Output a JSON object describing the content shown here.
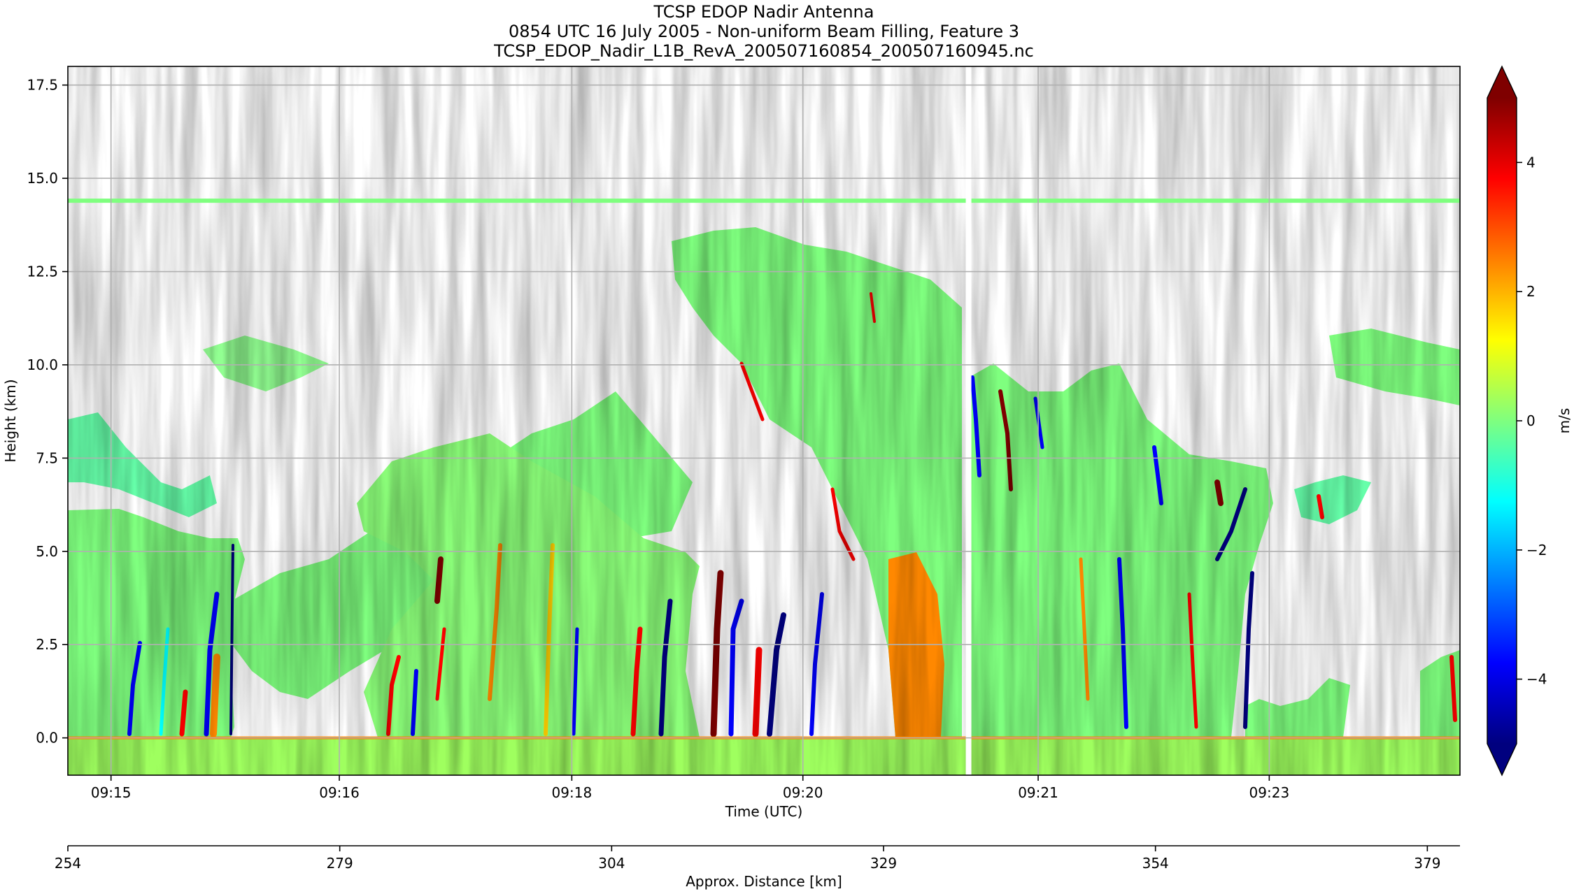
{
  "chart_data": {
    "type": "heatmap",
    "title": [
      "TCSP EDOP Nadir Antenna",
      "0854 UTC 16 July 2005 - Non-uniform Beam Filling, Feature 3",
      "TCSP_EDOP_Nadir_L1B_RevA_200507160854_200507160945.nc"
    ],
    "xlabel": "Time (UTC)",
    "ylabel": "Height (km)",
    "x2label": "Approx. Distance [km]",
    "colorbar_label": "m/s",
    "x_ticks": [
      "09:15",
      "09:16",
      "09:18",
      "09:20",
      "09:21",
      "09:23"
    ],
    "x_tick_fracs": [
      0.031,
      0.195,
      0.362,
      0.528,
      0.697,
      0.863
    ],
    "y_ticks": [
      "0.0",
      "2.5",
      "5.0",
      "7.5",
      "10.0",
      "12.5",
      "15.0",
      "17.5"
    ],
    "y_tick_values": [
      0.0,
      2.5,
      5.0,
      7.5,
      10.0,
      12.5,
      15.0,
      17.5
    ],
    "ylim": [
      -1.0,
      18.0
    ],
    "x2_ticks": [
      "254",
      "279",
      "304",
      "329",
      "354",
      "379"
    ],
    "x2_tick_values": [
      254,
      279,
      304,
      329,
      354,
      379
    ],
    "x2lim": [
      254,
      382
    ],
    "cbar_ticks": [
      "4",
      "2",
      "0",
      "−2",
      "−4"
    ],
    "cbar_values": [
      4,
      2,
      0,
      -2,
      -4
    ],
    "clim": [
      -5,
      5
    ],
    "colormap": "jet",
    "colormap_stops": [
      "#00007f",
      "#0000ff",
      "#00ffff",
      "#7fff7f",
      "#ffff00",
      "#ff0000",
      "#7f0000"
    ],
    "grid": true,
    "features": {
      "surface_band_km": [
        -1.0,
        0.0
      ],
      "noise_line_km": 14.4,
      "data_gap_frac": 0.645
    }
  }
}
